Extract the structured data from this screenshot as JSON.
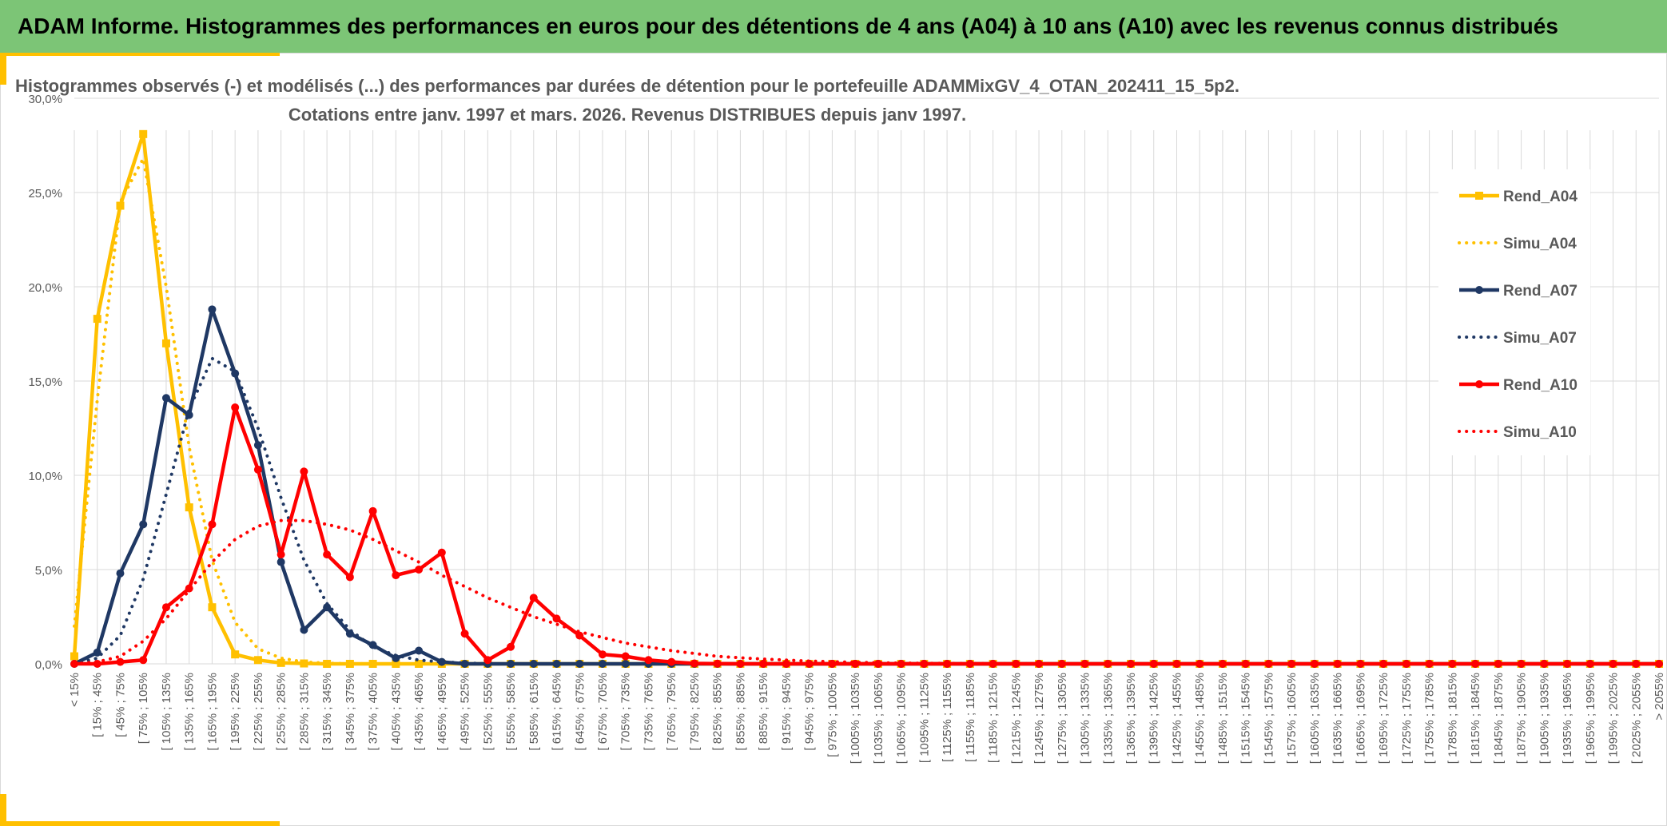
{
  "header": {
    "title": "ADAM Informe. Histogrammes des performances en euros pour des détentions de 4 ans (A04) à 10 ans (A10) avec les revenus connus distribués"
  },
  "colors": {
    "header_bg": "#7cc576",
    "accent": "#ffc000",
    "A04": "#ffc000",
    "A07": "#1f3864",
    "A10": "#ff0000",
    "grid": "#d9d9d9"
  },
  "chart_data": {
    "type": "line",
    "title_line1": "Histogrammes observés (-) et modélisés (...) des performances par durées de détention pour le portefeuille ADAMMixGV_4_OTAN_202411_15_5p2.",
    "title_line2": "Cotations entre janv. 1997 et mars. 2026. Revenus DISTRIBUES depuis janv 1997.",
    "ylim": [
      0,
      30
    ],
    "y_ticks": [
      "0,0%",
      "5,0%",
      "10,0%",
      "15,0%",
      "20,0%",
      "25,0%",
      "30,0%"
    ],
    "grid": true,
    "legend_position": "right",
    "categories": [
      "< 15%",
      "[ 15% ; 45%",
      "[ 45% ; 75%",
      "[ 75% ; 105%",
      "[ 105% ; 135%",
      "[ 135% ; 165%",
      "[ 165% ; 195%",
      "[ 195% ; 225%",
      "[ 225% ; 255%",
      "[ 255% ; 285%",
      "[ 285% ; 315%",
      "[ 315% ; 345%",
      "[ 345% ; 375%",
      "[ 375% ; 405%",
      "[ 405% ; 435%",
      "[ 435% ; 465%",
      "[ 465% ; 495%",
      "[ 495% ; 525%",
      "[ 525% ; 555%",
      "[ 555% ; 585%",
      "[ 585% ; 615%",
      "[ 615% ; 645%",
      "[ 645% ; 675%",
      "[ 675% ; 705%",
      "[ 705% ; 735%",
      "[ 735% ; 765%",
      "[ 765% ; 795%",
      "[ 795% ; 825%",
      "[ 825% ; 855%",
      "[ 855% ; 885%",
      "[ 885% ; 915%",
      "[ 915% ; 945%",
      "[ 945% ; 975%",
      "[ 975% ; 1005%",
      "[ 1005% ; 1035%",
      "[ 1035% ; 1065%",
      "[ 1065% ; 1095%",
      "[ 1095% ; 1125%",
      "[ 1125% ; 1155%",
      "[ 1155% ; 1185%",
      "[ 1185% ; 1215%",
      "[ 1215% ; 1245%",
      "[ 1245% ; 1275%",
      "[ 1275% ; 1305%",
      "[ 1305% ; 1335%",
      "[ 1335% ; 1365%",
      "[ 1365% ; 1395%",
      "[ 1395% ; 1425%",
      "[ 1425% ; 1455%",
      "[ 1455% ; 1485%",
      "[ 1485% ; 1515%",
      "[ 1515% ; 1545%",
      "[ 1545% ; 1575%",
      "[ 1575% ; 1605%",
      "[ 1605% ; 1635%",
      "[ 1635% ; 1665%",
      "[ 1665% ; 1695%",
      "[ 1695% ; 1725%",
      "[ 1725% ; 1755%",
      "[ 1755% ; 1785%",
      "[ 1785% ; 1815%",
      "[ 1815% ; 1845%",
      "[ 1845% ; 1875%",
      "[ 1875% ; 1905%",
      "[ 1905% ; 1935%",
      "[ 1935% ; 1965%",
      "[ 1965% ; 1995%",
      "[ 1995% ; 2025%",
      "[ 2025% ; 2055%",
      "> 2055%"
    ],
    "series": [
      {
        "name": "Rend_A04",
        "style": "solid",
        "marker": "square",
        "color": "#ffc000",
        "values": [
          0.4,
          18.3,
          24.3,
          28.1,
          17.0,
          8.3,
          3.0,
          0.5,
          0.2,
          0.05,
          0.02,
          0,
          0,
          0,
          0,
          0,
          0,
          0,
          0,
          0,
          0,
          0,
          0,
          0,
          0,
          0,
          0,
          0,
          0,
          0,
          0,
          0,
          0,
          0,
          0,
          0,
          0,
          0,
          0,
          0,
          0,
          0,
          0,
          0,
          0,
          0,
          0,
          0,
          0,
          0,
          0,
          0,
          0,
          0,
          0,
          0,
          0,
          0,
          0,
          0,
          0,
          0,
          0,
          0,
          0,
          0,
          0,
          0,
          0,
          0
        ]
      },
      {
        "name": "Simu_A04",
        "style": "dotted",
        "marker": "none",
        "color": "#ffc000",
        "values": [
          2.0,
          14.0,
          24.5,
          26.8,
          20.0,
          11.5,
          5.5,
          2.2,
          0.8,
          0.3,
          0.1,
          0.03,
          0.01,
          0,
          0,
          0,
          0,
          0,
          0,
          0,
          0,
          0,
          0,
          0,
          0,
          0,
          0,
          0,
          0,
          0,
          0,
          0,
          0,
          0,
          0,
          0,
          0,
          0,
          0,
          0,
          0,
          0,
          0,
          0,
          0,
          0,
          0,
          0,
          0,
          0,
          0,
          0,
          0,
          0,
          0,
          0,
          0,
          0,
          0,
          0,
          0,
          0,
          0,
          0,
          0,
          0,
          0,
          0,
          0,
          0
        ]
      },
      {
        "name": "Rend_A07",
        "style": "solid",
        "marker": "circle",
        "color": "#1f3864",
        "values": [
          0,
          0.6,
          4.8,
          7.4,
          14.1,
          13.2,
          18.8,
          15.4,
          11.6,
          5.4,
          1.8,
          3.0,
          1.6,
          1.0,
          0.3,
          0.7,
          0.1,
          0,
          0,
          0,
          0,
          0,
          0,
          0,
          0,
          0,
          0,
          0,
          0,
          0,
          0,
          0,
          0,
          0,
          0,
          0,
          0,
          0,
          0,
          0,
          0,
          0,
          0,
          0,
          0,
          0,
          0,
          0,
          0,
          0,
          0,
          0,
          0,
          0,
          0,
          0,
          0,
          0,
          0,
          0,
          0,
          0,
          0,
          0,
          0,
          0,
          0,
          0,
          0,
          0
        ]
      },
      {
        "name": "Simu_A07",
        "style": "dotted",
        "marker": "none",
        "color": "#1f3864",
        "values": [
          0,
          0.3,
          1.5,
          4.5,
          9.0,
          13.5,
          16.2,
          15.5,
          12.5,
          8.8,
          5.5,
          3.2,
          1.8,
          0.9,
          0.45,
          0.2,
          0.1,
          0.05,
          0,
          0,
          0,
          0,
          0,
          0,
          0,
          0,
          0,
          0,
          0,
          0,
          0,
          0,
          0,
          0,
          0,
          0,
          0,
          0,
          0,
          0,
          0,
          0,
          0,
          0,
          0,
          0,
          0,
          0,
          0,
          0,
          0,
          0,
          0,
          0,
          0,
          0,
          0,
          0,
          0,
          0,
          0,
          0,
          0,
          0,
          0,
          0,
          0,
          0,
          0,
          0
        ]
      },
      {
        "name": "Rend_A10",
        "style": "solid",
        "marker": "circle",
        "color": "#ff0000",
        "values": [
          0,
          0,
          0.1,
          0.2,
          3.0,
          4.0,
          7.4,
          13.6,
          10.3,
          5.8,
          10.2,
          5.8,
          4.6,
          8.1,
          4.7,
          5.0,
          5.9,
          1.6,
          0.2,
          0.9,
          3.5,
          2.4,
          1.5,
          0.5,
          0.4,
          0.2,
          0.1,
          0.02,
          0.01,
          0,
          0,
          0,
          0,
          0,
          0,
          0,
          0,
          0,
          0,
          0,
          0,
          0,
          0,
          0,
          0,
          0,
          0,
          0,
          0,
          0,
          0,
          0,
          0,
          0,
          0,
          0,
          0,
          0,
          0,
          0,
          0,
          0,
          0,
          0,
          0,
          0,
          0,
          0,
          0,
          0
        ]
      },
      {
        "name": "Simu_A10",
        "style": "dotted",
        "marker": "none",
        "color": "#ff0000",
        "values": [
          0,
          0.1,
          0.4,
          1.2,
          2.4,
          3.9,
          5.4,
          6.6,
          7.3,
          7.6,
          7.6,
          7.4,
          7.1,
          6.6,
          6.0,
          5.4,
          4.7,
          4.1,
          3.5,
          3.0,
          2.5,
          2.1,
          1.7,
          1.4,
          1.1,
          0.9,
          0.7,
          0.55,
          0.4,
          0.32,
          0.25,
          0.2,
          0.15,
          0.11,
          0.08,
          0.06,
          0.04,
          0.03,
          0.02,
          0.02,
          0.01,
          0.01,
          0,
          0,
          0,
          0,
          0,
          0,
          0,
          0,
          0,
          0,
          0,
          0,
          0,
          0,
          0,
          0,
          0,
          0,
          0,
          0,
          0,
          0,
          0,
          0,
          0,
          0,
          0,
          0
        ]
      }
    ]
  }
}
